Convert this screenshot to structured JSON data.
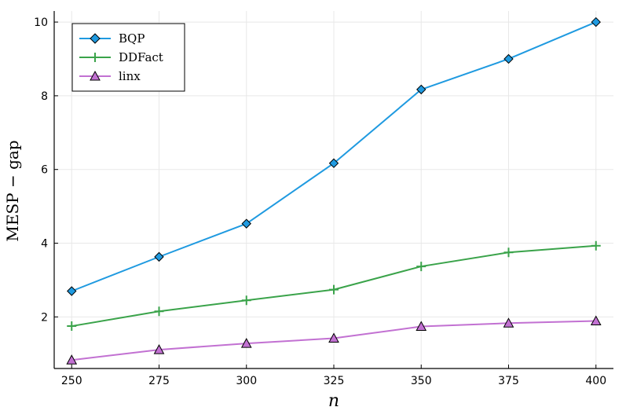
{
  "chart_data": {
    "type": "line",
    "title": "",
    "xlabel": "n",
    "ylabel": "MESP − gap",
    "x": [
      250,
      275,
      300,
      325,
      350,
      375,
      400
    ],
    "xticks": [
      "250",
      "275",
      "300",
      "325",
      "350",
      "375",
      "400"
    ],
    "yticks": [
      "2",
      "4",
      "6",
      "8",
      "10"
    ],
    "xlim": [
      245,
      405
    ],
    "ylim": [
      0.6,
      10.3
    ],
    "grid": true,
    "legend_position": "top-left",
    "series": [
      {
        "name": "BQP",
        "color": "#1f9ae0",
        "marker": "diamond",
        "values": [
          2.7,
          3.63,
          4.53,
          6.17,
          8.17,
          9.0,
          10.0
        ]
      },
      {
        "name": "DDFact",
        "color": "#3aa34a",
        "marker": "plus",
        "values": [
          1.75,
          2.15,
          2.45,
          2.74,
          3.37,
          3.75,
          3.93
        ]
      },
      {
        "name": "linx",
        "color": "#c271d2",
        "marker": "triangle",
        "values": [
          0.83,
          1.11,
          1.28,
          1.42,
          1.74,
          1.83,
          1.89
        ]
      }
    ]
  }
}
